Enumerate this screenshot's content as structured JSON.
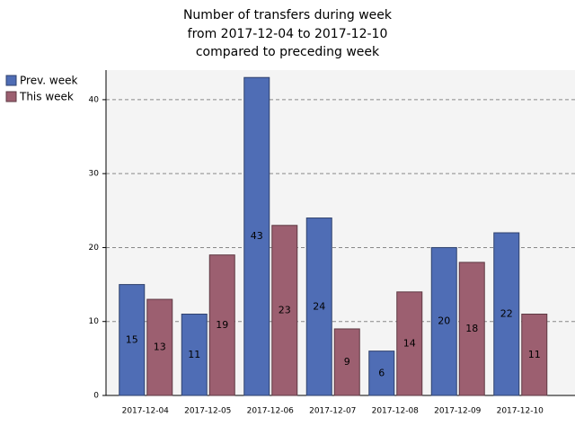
{
  "chart_data": {
    "type": "bar",
    "title": [
      "Number of transfers during week",
      "from 2017-12-04 to 2017-12-10",
      "compared to preceding week"
    ],
    "categories": [
      "2017-12-04",
      "2017-12-05",
      "2017-12-06",
      "2017-12-07",
      "2017-12-08",
      "2017-12-09",
      "2017-12-10"
    ],
    "series": [
      {
        "name": "Prev. week",
        "color": "#4f6db5",
        "values": [
          15,
          11,
          43,
          24,
          6,
          20,
          22
        ]
      },
      {
        "name": "This week",
        "color": "#9c5f70",
        "values": [
          13,
          19,
          23,
          9,
          14,
          18,
          11
        ]
      }
    ],
    "ylim": [
      0,
      44
    ],
    "yticks": [
      0,
      10,
      20,
      30,
      40
    ],
    "grid": true,
    "legend": "left"
  }
}
